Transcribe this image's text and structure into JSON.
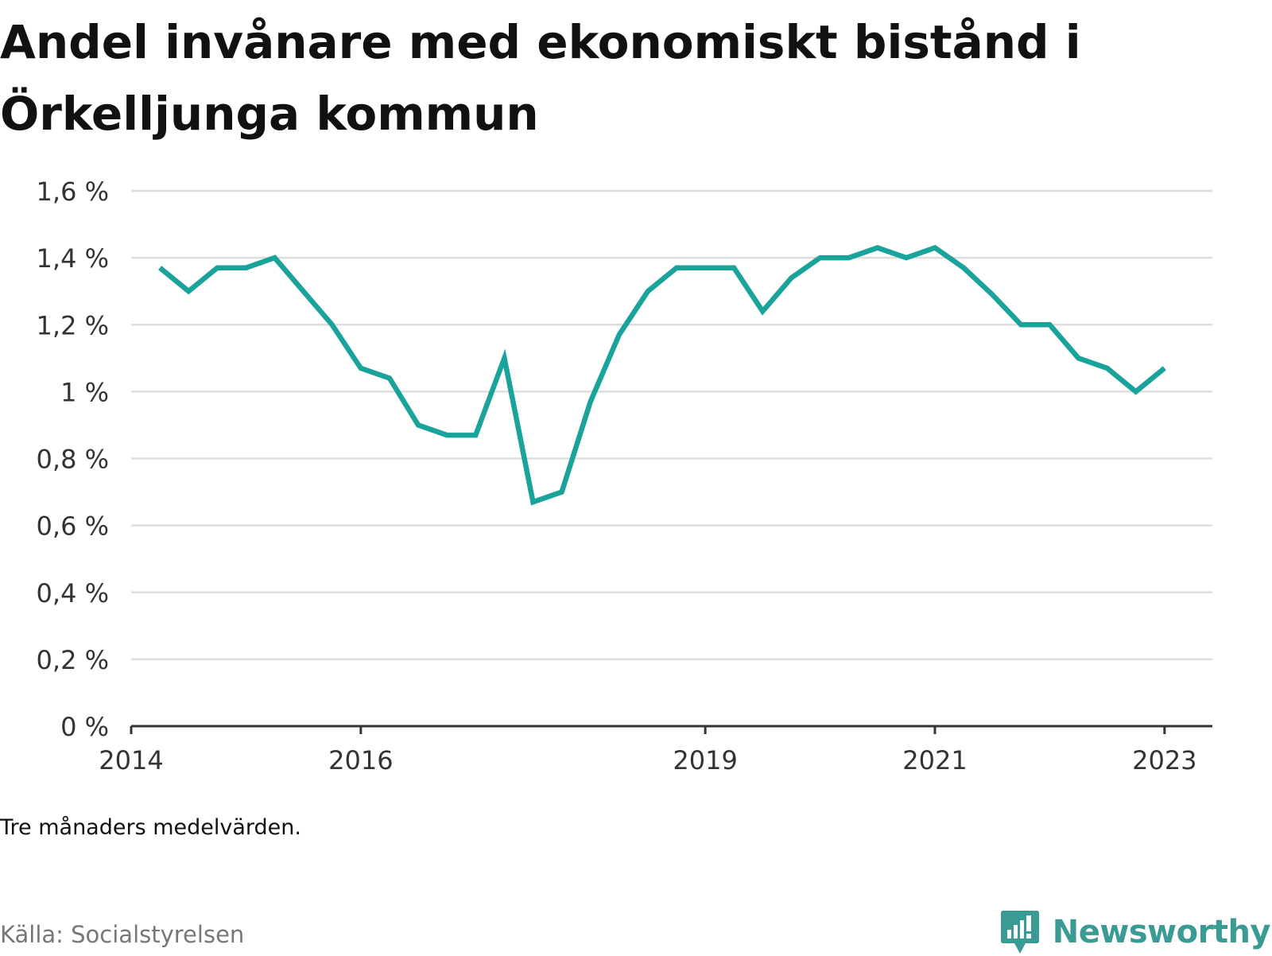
{
  "chart_data": {
    "type": "line",
    "title": "Andel invånare med ekonomiskt bistånd i Örkelljunga kommun",
    "note": "Tre månaders medelvärden.",
    "source": "Källa: Socialstyrelsen",
    "brand": "Newsworthy",
    "line_color": "#1aa39b",
    "ylim": [
      0,
      1.6
    ],
    "y_ticks": [
      {
        "value": 0,
        "label": "0 %"
      },
      {
        "value": 0.2,
        "label": "0,2 %"
      },
      {
        "value": 0.4,
        "label": "0,4 %"
      },
      {
        "value": 0.6,
        "label": "0,6 %"
      },
      {
        "value": 0.8,
        "label": "0,8 %"
      },
      {
        "value": 1.0,
        "label": "1 %"
      },
      {
        "value": 1.2,
        "label": "1,2 %"
      },
      {
        "value": 1.4,
        "label": "1,4 %"
      },
      {
        "value": 1.6,
        "label": "1,6 %"
      }
    ],
    "xlim": [
      "2014-01",
      "2023-06"
    ],
    "x_ticks": [
      {
        "value": "2014-01",
        "label": "2014"
      },
      {
        "value": "2016-01",
        "label": "2016"
      },
      {
        "value": "2019-01",
        "label": "2019"
      },
      {
        "value": "2021-01",
        "label": "2021"
      },
      {
        "value": "2023-01",
        "label": "2023"
      }
    ],
    "series": [
      {
        "x": [
          "2014-04",
          "2014-07",
          "2014-10",
          "2015-01",
          "2015-04",
          "2015-07",
          "2015-10",
          "2016-01",
          "2016-04",
          "2016-07",
          "2016-10",
          "2017-01",
          "2017-04",
          "2017-07",
          "2017-10",
          "2018-01",
          "2018-04",
          "2018-07",
          "2018-10",
          "2019-01",
          "2019-04",
          "2019-07",
          "2019-10",
          "2020-01",
          "2020-04",
          "2020-07",
          "2020-10",
          "2021-01",
          "2021-04",
          "2021-07",
          "2021-10",
          "2022-01",
          "2022-04",
          "2022-07",
          "2022-10",
          "2023-01"
        ],
        "values": [
          1.37,
          1.3,
          1.37,
          1.37,
          1.4,
          1.3,
          1.2,
          1.07,
          1.04,
          0.9,
          0.87,
          0.87,
          1.1,
          0.67,
          0.7,
          0.97,
          1.17,
          1.3,
          1.37,
          1.37,
          1.37,
          1.24,
          1.34,
          1.4,
          1.4,
          1.43,
          1.4,
          1.43,
          1.37,
          1.29,
          1.2,
          1.2,
          1.1,
          1.07,
          1.0,
          1.07
        ]
      }
    ]
  }
}
